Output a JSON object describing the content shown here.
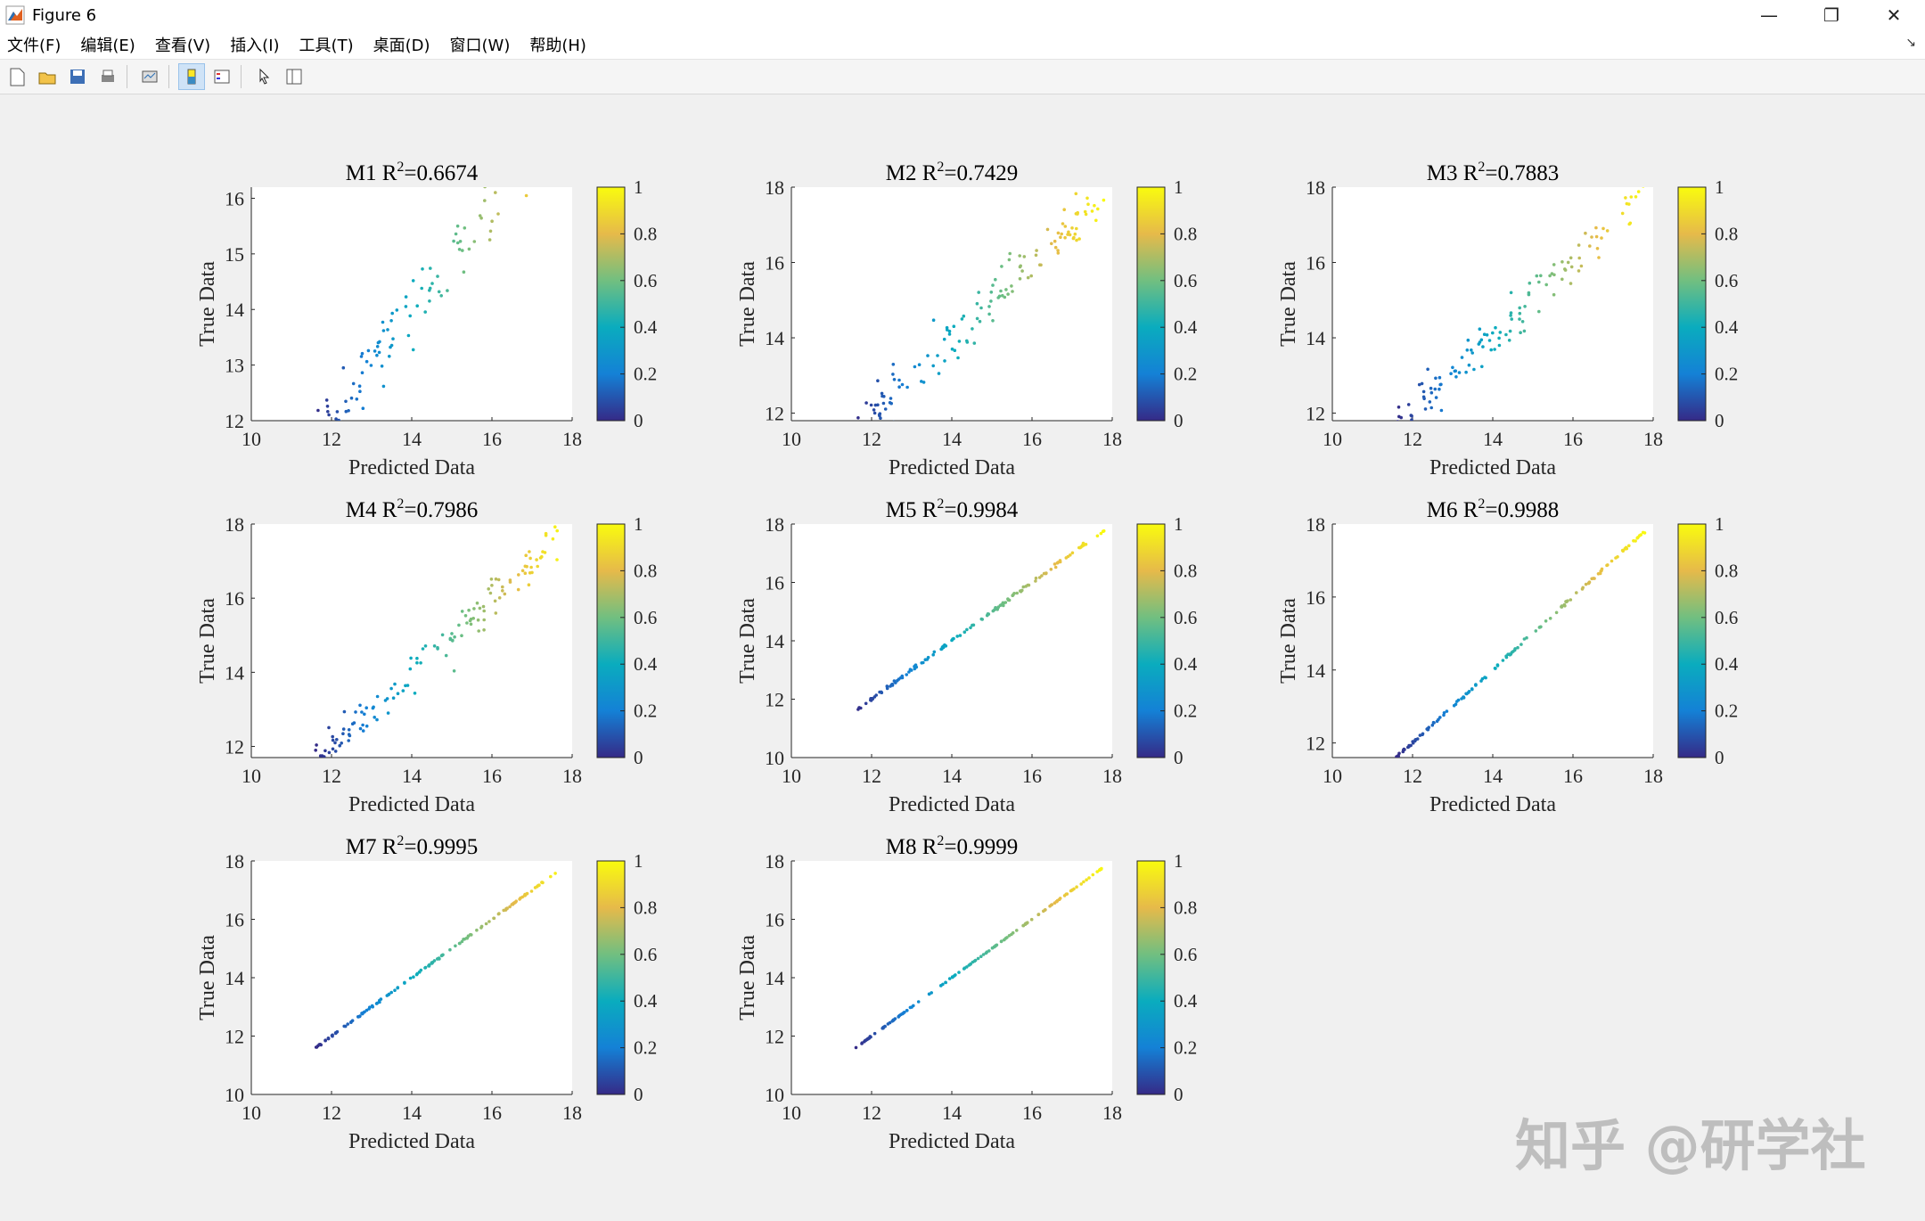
{
  "window": {
    "title": "Figure 6",
    "minimize": "—",
    "maximize": "❐",
    "close": "✕"
  },
  "menu": [
    "文件(F)",
    "编辑(E)",
    "查看(V)",
    "插入(I)",
    "工具(T)",
    "桌面(D)",
    "窗口(W)",
    "帮助(H)"
  ],
  "toolbar": [
    {
      "name": "new-figure-icon",
      "active": false
    },
    {
      "name": "open-file-icon",
      "active": false
    },
    {
      "name": "save-icon",
      "active": false
    },
    {
      "name": "print-icon",
      "active": false
    },
    {
      "name": "sep",
      "active": false
    },
    {
      "name": "link-plot-icon",
      "active": false
    },
    {
      "name": "sep",
      "active": false
    },
    {
      "name": "colorbar-toggle-icon",
      "active": true
    },
    {
      "name": "legend-toggle-icon",
      "active": false
    },
    {
      "name": "sep",
      "active": false
    },
    {
      "name": "edit-plot-pointer-icon",
      "active": false
    },
    {
      "name": "property-inspector-icon",
      "active": false
    }
  ],
  "watermark": "知乎 @研学社",
  "chart_data": [
    {
      "type": "scatter",
      "model": "M1",
      "r2": "0.6674",
      "xlabel": "Predicted Data",
      "ylabel": "True Data",
      "xlim": [
        10,
        18
      ],
      "ylim": [
        12,
        16.2
      ],
      "xticks": [
        "10",
        "12",
        "14",
        "16",
        "18"
      ],
      "yticks": [
        "12",
        "13",
        "14",
        "15",
        "16"
      ],
      "noise": 0.62,
      "colorbar": {
        "ticks": [
          "0",
          "0.2",
          "0.4",
          "0.6",
          "0.8",
          "1"
        ],
        "colormap": "parula"
      }
    },
    {
      "type": "scatter",
      "model": "M2",
      "r2": "0.7429",
      "xlabel": "Predicted Data",
      "ylabel": "True Data",
      "xlim": [
        10,
        18
      ],
      "ylim": [
        11.8,
        18
      ],
      "xticks": [
        "10",
        "12",
        "14",
        "16",
        "18"
      ],
      "yticks": [
        "12",
        "14",
        "16",
        "18"
      ],
      "noise": 0.55,
      "colorbar": {
        "ticks": [
          "0",
          "0.2",
          "0.4",
          "0.6",
          "0.8",
          "1"
        ],
        "colormap": "parula"
      }
    },
    {
      "type": "scatter",
      "model": "M3",
      "r2": "0.7883",
      "xlabel": "Predicted Data",
      "ylabel": "True Data",
      "xlim": [
        10,
        18
      ],
      "ylim": [
        11.8,
        18
      ],
      "xticks": [
        "10",
        "12",
        "14",
        "16",
        "18"
      ],
      "yticks": [
        "12",
        "14",
        "16",
        "18"
      ],
      "noise": 0.5,
      "colorbar": {
        "ticks": [
          "0",
          "0.2",
          "0.4",
          "0.6",
          "0.8",
          "1"
        ],
        "colormap": "parula"
      }
    },
    {
      "type": "scatter",
      "model": "M4",
      "r2": "0.7986",
      "xlabel": "Predicted Data",
      "ylabel": "True Data",
      "xlim": [
        10,
        18
      ],
      "ylim": [
        11.7,
        18
      ],
      "xticks": [
        "10",
        "12",
        "14",
        "16",
        "18"
      ],
      "yticks": [
        "12",
        "14",
        "16",
        "18"
      ],
      "noise": 0.47,
      "colorbar": {
        "ticks": [
          "0",
          "0.2",
          "0.4",
          "0.6",
          "0.8",
          "1"
        ],
        "colormap": "parula"
      }
    },
    {
      "type": "scatter",
      "model": "M5",
      "r2": "0.9984",
      "xlabel": "Predicted Data",
      "ylabel": "True Data",
      "xlim": [
        10,
        18
      ],
      "ylim": [
        10,
        18
      ],
      "xticks": [
        "10",
        "12",
        "14",
        "16",
        "18"
      ],
      "yticks": [
        "10",
        "12",
        "14",
        "16",
        "18"
      ],
      "noise": 0.05,
      "colorbar": {
        "ticks": [
          "0",
          "0.2",
          "0.4",
          "0.6",
          "0.8",
          "1"
        ],
        "colormap": "parula"
      }
    },
    {
      "type": "scatter",
      "model": "M6",
      "r2": "0.9988",
      "xlabel": "Predicted Data",
      "ylabel": "True Data",
      "xlim": [
        10,
        18
      ],
      "ylim": [
        11.6,
        18
      ],
      "xticks": [
        "10",
        "12",
        "14",
        "16",
        "18"
      ],
      "yticks": [
        "12",
        "14",
        "16",
        "18"
      ],
      "noise": 0.04,
      "colorbar": {
        "ticks": [
          "0",
          "0.2",
          "0.4",
          "0.6",
          "0.8",
          "1"
        ],
        "colormap": "parula"
      }
    },
    {
      "type": "scatter",
      "model": "M7",
      "r2": "0.9995",
      "xlabel": "Predicted Data",
      "ylabel": "True Data",
      "xlim": [
        10,
        18
      ],
      "ylim": [
        10,
        18
      ],
      "xticks": [
        "10",
        "12",
        "14",
        "16",
        "18"
      ],
      "yticks": [
        "10",
        "12",
        "14",
        "16",
        "18"
      ],
      "noise": 0.025,
      "colorbar": {
        "ticks": [
          "0",
          "0.2",
          "0.4",
          "0.6",
          "0.8",
          "1"
        ],
        "colormap": "parula"
      }
    },
    {
      "type": "scatter",
      "model": "M8",
      "r2": "0.9999",
      "xlabel": "Predicted Data",
      "ylabel": "True Data",
      "xlim": [
        10,
        18
      ],
      "ylim": [
        10,
        18
      ],
      "xticks": [
        "10",
        "12",
        "14",
        "16",
        "18"
      ],
      "yticks": [
        "10",
        "12",
        "14",
        "16",
        "18"
      ],
      "noise": 0.012,
      "colorbar": {
        "ticks": [
          "0",
          "0.2",
          "0.4",
          "0.6",
          "0.8",
          "1"
        ],
        "colormap": "parula"
      }
    }
  ]
}
